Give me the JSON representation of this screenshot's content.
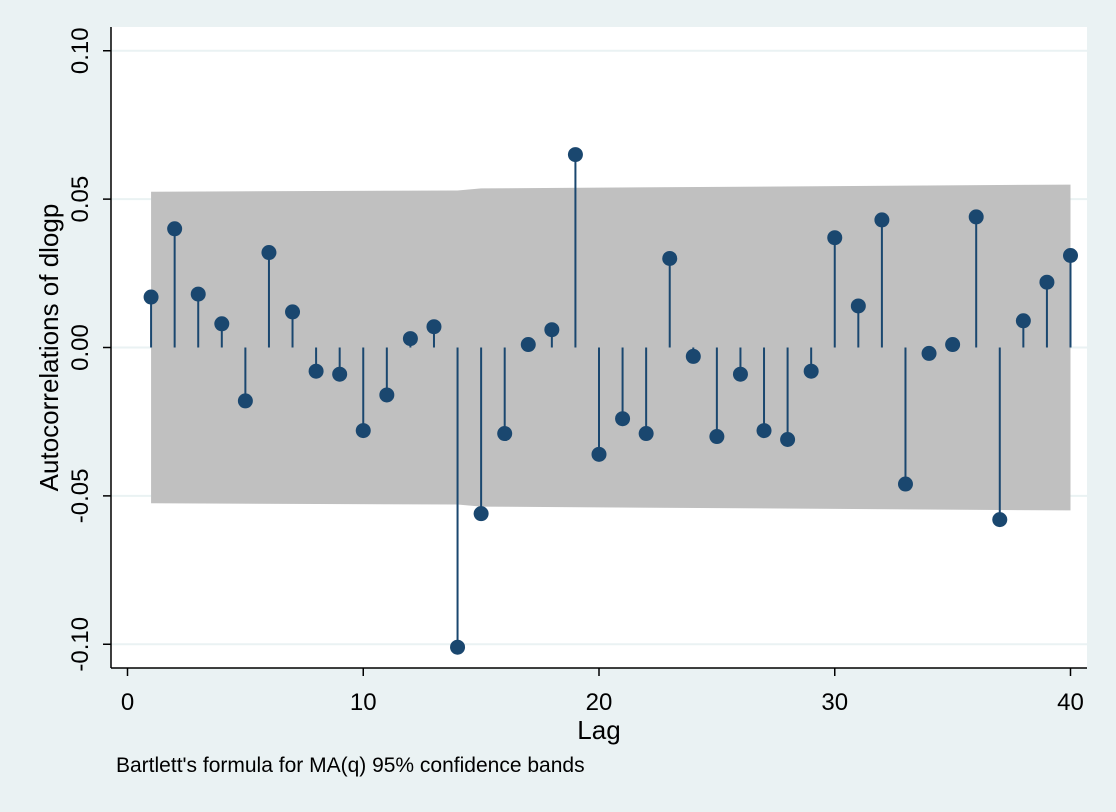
{
  "chart_data": {
    "type": "scatter",
    "style": "stem",
    "xlabel": "Lag",
    "ylabel": "Autocorrelations of dlogp",
    "note": "Bartlett's formula for MA(q) 95% confidence bands",
    "xlim": [
      -0.7,
      40.7
    ],
    "ylim": [
      -0.108,
      0.108
    ],
    "xticks": [
      0,
      10,
      20,
      30,
      40
    ],
    "xtick_labels": [
      "0",
      "10",
      "20",
      "30",
      "40"
    ],
    "yticks": [
      -0.1,
      -0.05,
      0.0,
      0.05,
      0.1
    ],
    "ytick_labels": [
      "-0.10",
      "-0.05",
      "0.00",
      "0.05",
      "0.10"
    ],
    "grid": true,
    "lags": [
      1,
      2,
      3,
      4,
      5,
      6,
      7,
      8,
      9,
      10,
      11,
      12,
      13,
      14,
      15,
      16,
      17,
      18,
      19,
      20,
      21,
      22,
      23,
      24,
      25,
      26,
      27,
      28,
      29,
      30,
      31,
      32,
      33,
      34,
      35,
      36,
      37,
      38,
      39,
      40
    ],
    "autocorrelations": [
      0.017,
      0.04,
      0.018,
      0.008,
      -0.018,
      0.032,
      0.012,
      -0.008,
      -0.009,
      -0.028,
      -0.016,
      0.003,
      0.007,
      -0.101,
      -0.056,
      -0.029,
      0.001,
      0.006,
      0.065,
      -0.036,
      -0.024,
      -0.029,
      0.03,
      -0.003,
      -0.03,
      -0.009,
      -0.028,
      -0.031,
      -0.008,
      0.037,
      0.014,
      0.043,
      -0.046,
      -0.002,
      0.001,
      0.044,
      -0.058,
      0.009,
      0.022,
      0.031
    ],
    "confidence_band": {
      "lags": [
        1,
        14,
        15,
        40
      ],
      "upper": [
        0.0525,
        0.0529,
        0.0536,
        0.0549
      ],
      "lower": [
        -0.0525,
        -0.0529,
        -0.0536,
        -0.0549
      ]
    },
    "colors": {
      "marker": "#1a476f",
      "band": "#c0c0c0",
      "grid": "#eaf2f3",
      "plot_background": "#ffffff",
      "page_background": "#eaf2f3"
    }
  }
}
